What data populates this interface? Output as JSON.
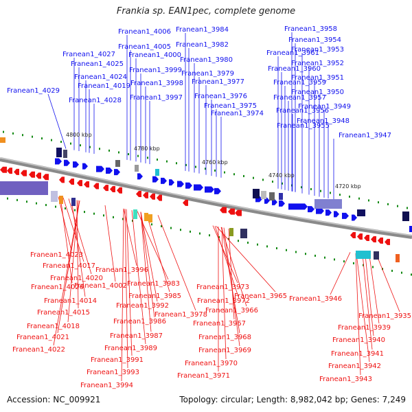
{
  "title": "Frankia sp. EAN1pec, complete genome",
  "footer": {
    "accession": "Accession: NC_009921",
    "topology": "Topology: circular; Length: 8,982,042 bp; Genes: 7,249"
  },
  "colors": {
    "forward": "#1010ee",
    "reverse": "#ee1010",
    "backbone": "#888888",
    "tick": "#118811"
  },
  "kbp_labels": [
    "4800 kbp",
    "4780 kbp",
    "4760 kbp",
    "4740 kbp",
    "4720 kbp"
  ],
  "forward_genes": [
    "Franean1_4006",
    "Franean1_3984",
    "Franean1_3958",
    "Franean1_4005",
    "Franean1_3982",
    "Franean1_3954",
    "Franean1_4027",
    "Franean1_4000",
    "Franean1_3961",
    "Franean1_3953",
    "Franean1_4025",
    "Franean1_3980",
    "Franean1_3960",
    "Franean1_3952",
    "Franean1_3999",
    "Franean1_3979",
    "Franean1_4024",
    "Franean1_3951",
    "Franean1_3998",
    "Franean1_3977",
    "Franean1_3959",
    "Franean1_4019",
    "Franean1_4029",
    "Franean1_3950",
    "Franean1_3997",
    "Franean1_3976",
    "Franean1_3957",
    "Franean1_4028",
    "Franean1_3975",
    "Franean1_3949",
    "Franean1_3956",
    "Franean1_3974",
    "Franean1_3955",
    "Franean1_3948",
    "Franean1_3947"
  ],
  "reverse_genes": [
    "Franean1_4023",
    "Franean1_4017",
    "Franean1_3996",
    "Franean1_4020",
    "Franean1_4026",
    "Franean1_4002",
    "Franean1_3983",
    "Franean1_3973",
    "Franean1_3985",
    "Franean1_3965",
    "Franean1_4014",
    "Franean1_3972",
    "Franean1_3946",
    "Franean1_3992",
    "Franean1_3966",
    "Franean1_4015",
    "Franean1_3978",
    "Franean1_3935",
    "Franean1_3986",
    "Franean1_3967",
    "Franean1_4018",
    "Franean1_3939",
    "Franean1_3987",
    "Franean1_3968",
    "Franean1_4021",
    "Franean1_3940",
    "Franean1_3989",
    "Franean1_4022",
    "Franean1_3969",
    "Franean1_3941",
    "Franean1_3991",
    "Franean1_3970",
    "Franean1_3942",
    "Franean1_3993",
    "Franean1_3971",
    "Franean1_3943",
    "Franean1_3994"
  ]
}
